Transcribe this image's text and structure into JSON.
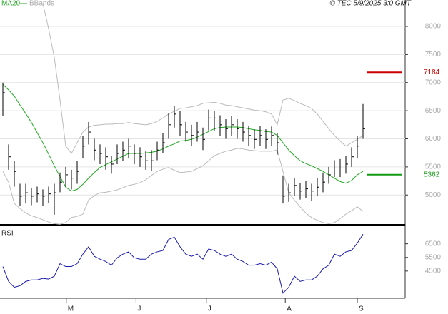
{
  "chart_data": [
    {
      "type": "ohlc",
      "source": "© TEC 5/9/2025 3:0 GMT",
      "ylim": [
        4470,
        8470
      ],
      "yticks": [
        5000,
        5500,
        6000,
        6500,
        7000,
        7500,
        8000
      ],
      "grid": true,
      "color": "#000000",
      "high": [
        7000,
        5900,
        5600,
        5200,
        5200,
        5120,
        5150,
        5100,
        5150,
        5200,
        5400,
        5500,
        5450,
        5600,
        6050,
        6300,
        6000,
        5900,
        5850,
        5700,
        5900,
        5950,
        6000,
        5900,
        5850,
        5780,
        5800,
        5950,
        6100,
        6450,
        6580,
        6500,
        6300,
        6250,
        6300,
        6200,
        6520,
        6500,
        6420,
        6350,
        6400,
        6350,
        6300,
        6230,
        6170,
        6230,
        6170,
        6220,
        6100,
        5350,
        5200,
        5300,
        5220,
        5250,
        5200,
        5300,
        5400,
        5500,
        5620,
        5640,
        5700,
        5850,
        6050,
        6620
      ],
      "low": [
        6400,
        5450,
        5150,
        4800,
        4850,
        4820,
        4870,
        4800,
        4860,
        4650,
        5050,
        5150,
        5100,
        5200,
        5650,
        5900,
        5620,
        5550,
        5450,
        5380,
        5550,
        5600,
        5650,
        5550,
        5500,
        5450,
        5430,
        5620,
        5750,
        6000,
        6200,
        6050,
        5950,
        5880,
        5950,
        5800,
        6150,
        6150,
        6050,
        6000,
        6050,
        6000,
        5950,
        5880,
        5820,
        5880,
        5820,
        5880,
        5720,
        4850,
        4880,
        4980,
        4920,
        4950,
        4900,
        4980,
        5050,
        5200,
        5320,
        5320,
        5380,
        5500,
        5650,
        6000
      ],
      "close": [
        6820,
        5680,
        5420,
        4980,
        5040,
        4980,
        5020,
        4980,
        5020,
        5040,
        5230,
        5360,
        5300,
        5420,
        5870,
        6120,
        5800,
        5740,
        5680,
        5550,
        5740,
        5800,
        5870,
        5740,
        5680,
        5610,
        5610,
        5800,
        5930,
        6250,
        6440,
        6250,
        6120,
        6060,
        6120,
        5990,
        6370,
        6370,
        6250,
        6180,
        6250,
        6180,
        6120,
        6060,
        5990,
        6060,
        5990,
        6060,
        5930,
        4980,
        5040,
        5170,
        5070,
        5110,
        5070,
        5140,
        5230,
        5360,
        5480,
        5480,
        5550,
        5680,
        5870,
        6180
      ],
      "series": [
        {
          "name": "MA20",
          "color": "#22aa22",
          "values": [
            6970,
            6870,
            6760,
            6600,
            6450,
            6290,
            6110,
            5930,
            5730,
            5520,
            5330,
            5140,
            5070,
            5100,
            5190,
            5300,
            5400,
            5490,
            5540,
            5590,
            5640,
            5690,
            5740,
            5740,
            5740,
            5750,
            5760,
            5780,
            5820,
            5870,
            5910,
            5960,
            5970,
            5990,
            6030,
            6080,
            6130,
            6180,
            6200,
            6210,
            6210,
            6210,
            6200,
            6180,
            6160,
            6150,
            6130,
            6120,
            6060,
            5930,
            5800,
            5700,
            5610,
            5560,
            5520,
            5470,
            5420,
            5360,
            5300,
            5240,
            5210,
            5260,
            5360,
            5420
          ]
        },
        {
          "name": "BBands",
          "color": "#bbbbbb",
          "upper": [
            null,
            null,
            null,
            null,
            null,
            null,
            null,
            8410,
            7960,
            7450,
            6690,
            5870,
            5740,
            5930,
            6120,
            6210,
            6240,
            6250,
            6260,
            6260,
            6270,
            6270,
            6290,
            6270,
            6260,
            6250,
            6270,
            6310,
            6370,
            6440,
            6490,
            6540,
            6550,
            6570,
            6590,
            6630,
            6640,
            6650,
            6630,
            6600,
            6590,
            6570,
            6550,
            6530,
            6510,
            6500,
            6480,
            6440,
            6250,
            6690,
            6720,
            6680,
            6630,
            6590,
            6540,
            6440,
            6310,
            6180,
            6060,
            5960,
            5870,
            5930,
            5990,
            6060
          ],
          "lower": [
            5420,
            5230,
            4850,
            4760,
            4680,
            4630,
            4600,
            4560,
            4520,
            4490,
            4480,
            4510,
            4600,
            4620,
            4660,
            4910,
            4990,
            5040,
            5050,
            5070,
            5090,
            5130,
            5170,
            5190,
            5220,
            5270,
            5350,
            5420,
            5460,
            5490,
            5440,
            5400,
            5410,
            5420,
            5470,
            5520,
            5610,
            5700,
            5740,
            5780,
            5800,
            5830,
            5820,
            5800,
            5790,
            5780,
            5780,
            5780,
            5800,
            5420,
            5040,
            4910,
            4790,
            4680,
            4600,
            4550,
            4510,
            4490,
            4510,
            4580,
            4660,
            4720,
            4790,
            4710
          ]
        }
      ],
      "markers": [
        {
          "value": 7184,
          "color": "#cc0000"
        },
        {
          "value": 5362,
          "color": "#119911"
        }
      ],
      "xticks": [
        {
          "value": 11.1,
          "label": "M"
        },
        {
          "value": 23.3,
          "label": "J"
        },
        {
          "value": 35.6,
          "label": "J"
        },
        {
          "value": 49.4,
          "label": "A"
        },
        {
          "value": 62,
          "label": "S"
        }
      ]
    },
    {
      "type": "line",
      "title": "RSI",
      "ylim": [
        2500,
        7740
      ],
      "yticks": [
        4500,
        5500,
        6500
      ],
      "grid": false,
      "series": [
        {
          "color": "#1a1aaa",
          "values": [
            4830,
            3740,
            3310,
            3420,
            3740,
            3850,
            3850,
            3960,
            3910,
            4120,
            5040,
            4830,
            4830,
            5040,
            5740,
            6280,
            5580,
            5370,
            5200,
            4930,
            5470,
            5740,
            5910,
            5470,
            5370,
            5370,
            5740,
            5910,
            6010,
            6820,
            6990,
            6280,
            5740,
            5580,
            5740,
            5370,
            6120,
            6010,
            5740,
            5580,
            5740,
            5370,
            5200,
            4930,
            4930,
            5040,
            4930,
            5150,
            4660,
            2880,
            3310,
            4120,
            3740,
            3850,
            3850,
            4120,
            4660,
            4930,
            5740,
            5580,
            5910,
            6010,
            6550,
            7200
          ]
        }
      ]
    }
  ]
}
